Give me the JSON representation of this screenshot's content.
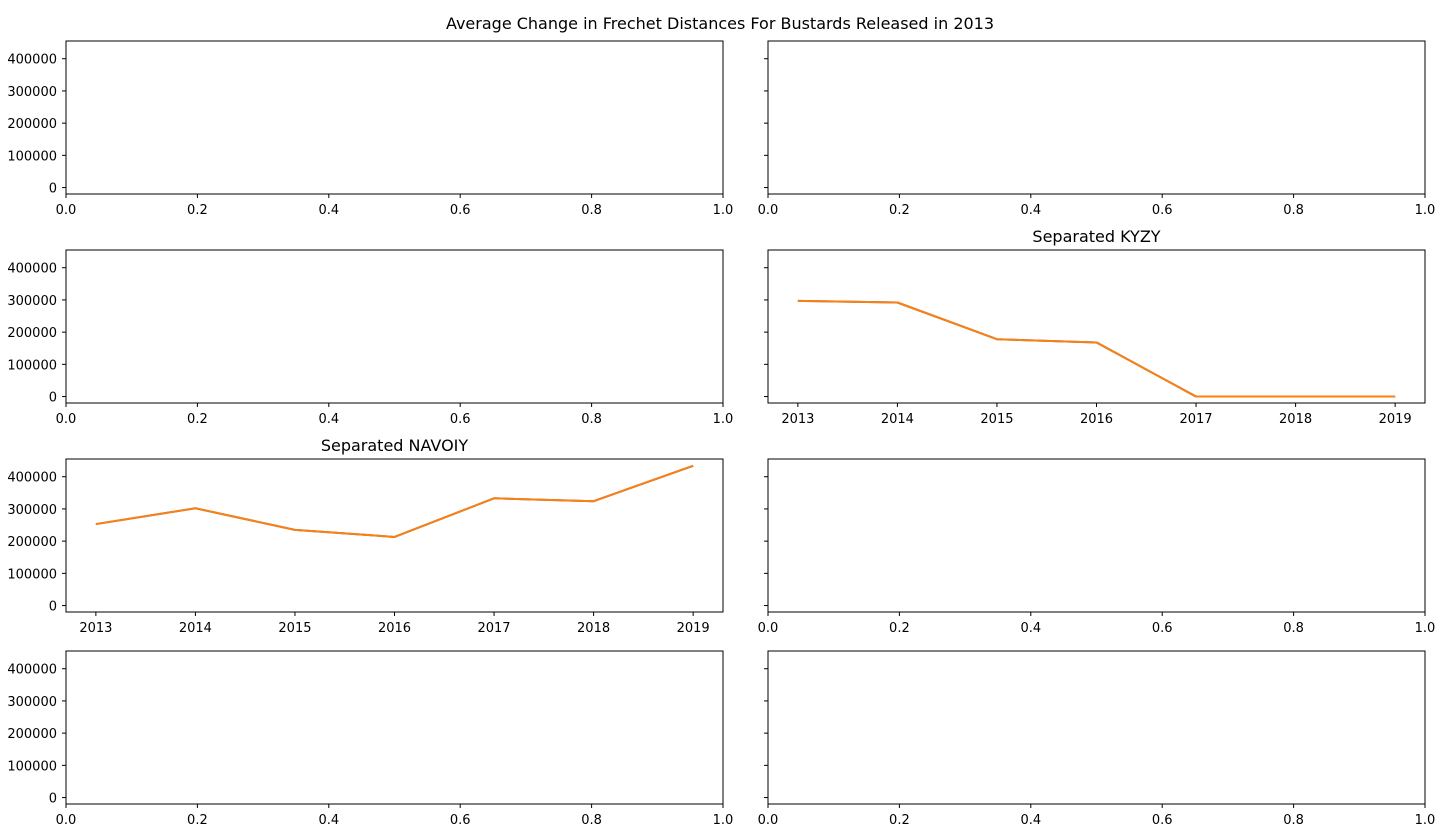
{
  "figure": {
    "title": "Average Change in Frechet Distances For Bustards Released in 2013"
  },
  "colors": {
    "series_under": "#1f77b4",
    "series_over": "#ff7f0e",
    "axes": "#000000",
    "background": "#ffffff"
  },
  "chart_data": [
    {
      "type": "line",
      "panel": "row1-left",
      "title": "",
      "xlim": [
        0.0,
        1.0
      ],
      "ylim": [
        -20000,
        455000
      ],
      "xticks": [
        "0.0",
        "0.2",
        "0.4",
        "0.6",
        "0.8",
        "1.0"
      ],
      "yticks": [
        "0",
        "100000",
        "200000",
        "300000",
        "400000"
      ],
      "show_ytick_labels": true,
      "series": []
    },
    {
      "type": "line",
      "panel": "row1-right",
      "title": "",
      "xlim": [
        0.0,
        1.0
      ],
      "ylim": [
        -20000,
        455000
      ],
      "xticks": [
        "0.0",
        "0.2",
        "0.4",
        "0.6",
        "0.8",
        "1.0"
      ],
      "yticks": [
        "0",
        "100000",
        "200000",
        "300000",
        "400000"
      ],
      "show_ytick_labels": false,
      "series": []
    },
    {
      "type": "line",
      "panel": "row2-left",
      "title": "",
      "xlim": [
        0.0,
        1.0
      ],
      "ylim": [
        -20000,
        455000
      ],
      "xticks": [
        "0.0",
        "0.2",
        "0.4",
        "0.6",
        "0.8",
        "1.0"
      ],
      "yticks": [
        "0",
        "100000",
        "200000",
        "300000",
        "400000"
      ],
      "show_ytick_labels": true,
      "series": []
    },
    {
      "type": "line",
      "panel": "row2-right",
      "title": "Separated KYZY",
      "xlim": [
        2012.7,
        2019.3
      ],
      "ylim": [
        -20000,
        455000
      ],
      "xticks": [
        "2013",
        "2014",
        "2015",
        "2016",
        "2017",
        "2018",
        "2019"
      ],
      "yticks": [
        "0",
        "100000",
        "200000",
        "300000",
        "400000"
      ],
      "show_ytick_labels": false,
      "x": [
        2013,
        2014,
        2015,
        2016,
        2017,
        2018,
        2019
      ],
      "series": [
        {
          "values": [
            297000,
            292000,
            178000,
            168000,
            0,
            0,
            0
          ],
          "color": "#1f77b4"
        },
        {
          "values": [
            297000,
            292000,
            178000,
            168000,
            0,
            0,
            0
          ],
          "color": "#ff7f0e"
        }
      ]
    },
    {
      "type": "line",
      "panel": "row3-left",
      "title": "Separated NAVOIY",
      "xlim": [
        2012.7,
        2019.3
      ],
      "ylim": [
        -20000,
        455000
      ],
      "xticks": [
        "2013",
        "2014",
        "2015",
        "2016",
        "2017",
        "2018",
        "2019"
      ],
      "yticks": [
        "0",
        "100000",
        "200000",
        "300000",
        "400000"
      ],
      "show_ytick_labels": true,
      "x": [
        2013,
        2014,
        2015,
        2016,
        2017,
        2018,
        2019
      ],
      "series": [
        {
          "values": [
            253000,
            302000,
            235000,
            213000,
            333000,
            324000,
            434000
          ],
          "color": "#1f77b4"
        },
        {
          "values": [
            253000,
            302000,
            235000,
            213000,
            333000,
            324000,
            434000
          ],
          "color": "#ff7f0e"
        }
      ]
    },
    {
      "type": "line",
      "panel": "row3-right",
      "title": "",
      "xlim": [
        0.0,
        1.0
      ],
      "ylim": [
        -20000,
        455000
      ],
      "xticks": [
        "0.0",
        "0.2",
        "0.4",
        "0.6",
        "0.8",
        "1.0"
      ],
      "yticks": [
        "0",
        "100000",
        "200000",
        "300000",
        "400000"
      ],
      "show_ytick_labels": false,
      "series": []
    },
    {
      "type": "line",
      "panel": "row4-left",
      "title": "",
      "xlim": [
        0.0,
        1.0
      ],
      "ylim": [
        -20000,
        455000
      ],
      "xticks": [
        "0.0",
        "0.2",
        "0.4",
        "0.6",
        "0.8",
        "1.0"
      ],
      "yticks": [
        "0",
        "100000",
        "200000",
        "300000",
        "400000"
      ],
      "show_ytick_labels": true,
      "series": []
    },
    {
      "type": "line",
      "panel": "row4-right",
      "title": "",
      "xlim": [
        0.0,
        1.0
      ],
      "ylim": [
        -20000,
        455000
      ],
      "xticks": [
        "0.0",
        "0.2",
        "0.4",
        "0.6",
        "0.8",
        "1.0"
      ],
      "yticks": [
        "0",
        "100000",
        "200000",
        "300000",
        "400000"
      ],
      "show_ytick_labels": false,
      "series": []
    }
  ]
}
